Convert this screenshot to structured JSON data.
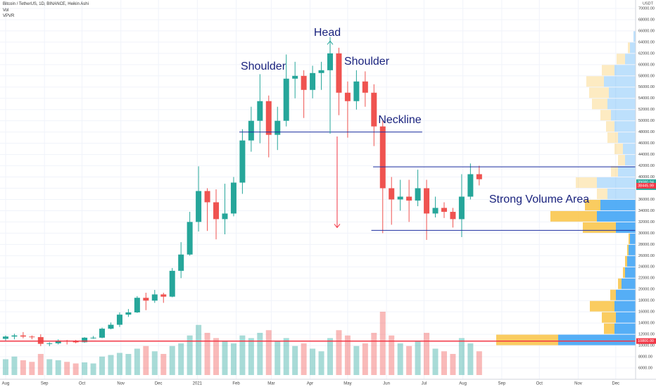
{
  "chart_data": {
    "type": "candlestick",
    "title": "Bitcoin / TetherUS, 1D, BINANCE, Heikin Ashi",
    "indicators": [
      "Vol",
      "VPVR"
    ],
    "y_axis_label": "USDT",
    "x": [
      0,
      1,
      2,
      3,
      4,
      5,
      6,
      7,
      8,
      9,
      10,
      11,
      12,
      13,
      14,
      15,
      16,
      17,
      18,
      19,
      20,
      21,
      22,
      23,
      24,
      25,
      26,
      27,
      28,
      29,
      30,
      31,
      32,
      33,
      34,
      35,
      36,
      37,
      38,
      39,
      40,
      41,
      42,
      43,
      44,
      45,
      46,
      47,
      48,
      49,
      50,
      51,
      52,
      53,
      54
    ],
    "open": [
      11200,
      11600,
      11800,
      11600,
      11500,
      10300,
      10400,
      10900,
      10700,
      10600,
      11400,
      11400,
      13000,
      13700,
      15500,
      15900,
      18500,
      18000,
      19100,
      18700,
      23300,
      26200,
      32000,
      37500,
      35500,
      32500,
      33500,
      39000,
      46500,
      50000,
      53500,
      47500,
      50000,
      57500,
      58000,
      55500,
      58500,
      59000,
      62000,
      55000,
      53500,
      57000,
      55000,
      49000,
      38000,
      36000,
      36500,
      35800,
      38000,
      33500,
      34500,
      33800,
      32500,
      36500,
      40500
    ],
    "high": [
      11800,
      12100,
      12400,
      11800,
      12000,
      10600,
      11100,
      11000,
      11000,
      11500,
      11700,
      13200,
      14100,
      15900,
      16500,
      18800,
      19400,
      19900,
      19400,
      23800,
      28400,
      33800,
      41900,
      38000,
      37800,
      38800,
      40000,
      48500,
      52500,
      58300,
      54500,
      52500,
      61800,
      60500,
      59000,
      59800,
      60500,
      64900,
      63000,
      57000,
      59000,
      58800,
      56500,
      50000,
      40000,
      39500,
      39500,
      41300,
      39500,
      36500,
      35500,
      34500,
      40500,
      42400,
      42000
    ],
    "low": [
      10900,
      11100,
      11300,
      11100,
      9900,
      9900,
      10200,
      10200,
      10400,
      10500,
      11200,
      11300,
      12900,
      13300,
      15100,
      15800,
      16300,
      17600,
      17600,
      18600,
      22000,
      26000,
      30300,
      30400,
      28900,
      29800,
      33000,
      37000,
      44500,
      46000,
      43500,
      44800,
      49000,
      54000,
      50500,
      54000,
      55500,
      57500,
      51000,
      47000,
      52000,
      52500,
      45500,
      30000,
      31500,
      34000,
      32000,
      34800,
      28800,
      32800,
      32700,
      31000,
      29300,
      36000,
      38500
    ],
    "close": [
      11600,
      11800,
      11600,
      11500,
      10300,
      10400,
      10900,
      10700,
      10600,
      11400,
      11400,
      13000,
      13700,
      15500,
      15900,
      18500,
      18000,
      19100,
      18700,
      23300,
      26200,
      32000,
      37500,
      35500,
      32500,
      33500,
      39000,
      46500,
      50000,
      53500,
      47500,
      50000,
      57500,
      58000,
      55500,
      58500,
      59000,
      62000,
      55000,
      53500,
      57000,
      55000,
      49000,
      38000,
      36000,
      36500,
      35800,
      38000,
      33500,
      34500,
      33800,
      32500,
      36500,
      40500,
      39600
    ],
    "volume": [
      30,
      35,
      28,
      25,
      40,
      30,
      28,
      25,
      22,
      24,
      22,
      35,
      38,
      42,
      40,
      50,
      55,
      45,
      40,
      55,
      60,
      75,
      95,
      80,
      70,
      65,
      60,
      75,
      70,
      80,
      85,
      65,
      70,
      55,
      60,
      50,
      45,
      70,
      85,
      75,
      55,
      60,
      80,
      120,
      75,
      60,
      55,
      65,
      80,
      50,
      45,
      40,
      70,
      60,
      45
    ],
    "up_color": "#26a69a",
    "down_color": "#ef5350",
    "xlim": [
      -0.64,
      71.83
    ],
    "xticks": [
      {
        "value": 0,
        "label": "Aug"
      },
      {
        "value": 4.43,
        "label": "Sep"
      },
      {
        "value": 8.71,
        "label": "Oct"
      },
      {
        "value": 13.14,
        "label": "Nov"
      },
      {
        "value": 17.43,
        "label": "Dec"
      },
      {
        "value": 21.86,
        "label": "2021"
      },
      {
        "value": 26.29,
        "label": "Feb"
      },
      {
        "value": 30.29,
        "label": "Mar"
      },
      {
        "value": 34.71,
        "label": "Apr"
      },
      {
        "value": 39,
        "label": "May"
      },
      {
        "value": 43.43,
        "label": "Jun"
      },
      {
        "value": 47.71,
        "label": "Jul"
      },
      {
        "value": 52.14,
        "label": "Aug"
      },
      {
        "value": 56.57,
        "label": "Sep"
      },
      {
        "value": 60.86,
        "label": "Oct"
      },
      {
        "value": 65.29,
        "label": "Nov"
      },
      {
        "value": 69.57,
        "label": "Dec"
      }
    ],
    "ylim": [
      4000,
      71500
    ],
    "yticks": [
      {
        "value": 6000,
        "label": "6000.00"
      },
      {
        "value": 8000,
        "label": "8000.00"
      },
      {
        "value": 10000,
        "label": "10000.00"
      },
      {
        "value": 12000,
        "label": "12000.00"
      },
      {
        "value": 14000,
        "label": "14000.00"
      },
      {
        "value": 16000,
        "label": "16000.00"
      },
      {
        "value": 18000,
        "label": "18000.00"
      },
      {
        "value": 20000,
        "label": "20000.00"
      },
      {
        "value": 22000,
        "label": "22000.00"
      },
      {
        "value": 24000,
        "label": "24000.00"
      },
      {
        "value": 26000,
        "label": "26000.00"
      },
      {
        "value": 28000,
        "label": "28000.00"
      },
      {
        "value": 30000,
        "label": "30000.00"
      },
      {
        "value": 32000,
        "label": "32000.00"
      },
      {
        "value": 34000,
        "label": "34000.00"
      },
      {
        "value": 36000,
        "label": "36000.00"
      },
      {
        "value": 38000,
        "label": "38000.00"
      },
      {
        "value": 40000,
        "label": "40000.00"
      },
      {
        "value": 42000,
        "label": "42000.00"
      },
      {
        "value": 44000,
        "label": "44000.00"
      },
      {
        "value": 46000,
        "label": "46000.00"
      },
      {
        "value": 48000,
        "label": "48000.00"
      },
      {
        "value": 50000,
        "label": "50000.00"
      },
      {
        "value": 52000,
        "label": "52000.00"
      },
      {
        "value": 54000,
        "label": "54000.00"
      },
      {
        "value": 56000,
        "label": "56000.00"
      },
      {
        "value": 58000,
        "label": "58000.00"
      },
      {
        "value": 60000,
        "label": "60000.00"
      },
      {
        "value": 62000,
        "label": "62000.00"
      },
      {
        "value": 64000,
        "label": "64000.00"
      },
      {
        "value": 66000,
        "label": "66000.00"
      },
      {
        "value": 68000,
        "label": "68000.00"
      },
      {
        "value": 70000,
        "label": "70000.00"
      }
    ],
    "grid": true,
    "profile": {
      "bins": [
        10000,
        12000,
        14000,
        16000,
        18000,
        20000,
        22000,
        24000,
        26000,
        28000,
        30000,
        32000,
        34000,
        36000,
        38000,
        40000,
        42000,
        44000,
        46000,
        48000,
        50000,
        52000,
        54000,
        56000,
        58000,
        60000,
        62000,
        64000,
        66000
      ],
      "up": [
        110,
        30,
        28,
        30,
        28,
        20,
        15,
        12,
        10,
        8,
        28,
        55,
        50,
        40,
        55,
        25,
        15,
        18,
        25,
        30,
        35,
        40,
        38,
        45,
        30,
        15,
        8,
        3
      ],
      "down": [
        88,
        15,
        20,
        35,
        8,
        5,
        3,
        3,
        2,
        2,
        47,
        66,
        22,
        15,
        30,
        10,
        10,
        12,
        15,
        12,
        15,
        22,
        28,
        25,
        18,
        12,
        3,
        0
      ],
      "up_color": "#42a5f5",
      "down_color": "#f9c74f"
    },
    "lines": [
      {
        "y": 10800,
        "color": "#f23645"
      },
      {
        "y": 48000,
        "x": [
          26.65,
          47.5
        ],
        "color": "#1e2fa0"
      },
      {
        "y": 41800,
        "x": [
          41.9,
          71.83
        ],
        "color": "#1e2fa0"
      },
      {
        "y": 30500,
        "x": [
          41.7,
          71.83
        ],
        "color": "#1e2fa0"
      }
    ],
    "arrows": [
      {
        "x": 37,
        "from": 47700,
        "to": 64200,
        "color": "#26a69a"
      },
      {
        "x": 37.8,
        "from": 47200,
        "to": 31000,
        "color": "#f23645"
      }
    ],
    "price_tags": [
      {
        "value": 39080.94,
        "label": "39080.94",
        "color": "#26a69a"
      },
      {
        "value": 38445.99,
        "label": "38445.99",
        "color": "#f23645"
      },
      {
        "value": 10800,
        "label": "10800.00",
        "color": "#f23645"
      }
    ],
    "countdown": "23:35:28",
    "annotations": [
      "Head",
      "Shoulder",
      "Shoulder",
      "Neckline",
      "Strong Volume Area"
    ]
  }
}
